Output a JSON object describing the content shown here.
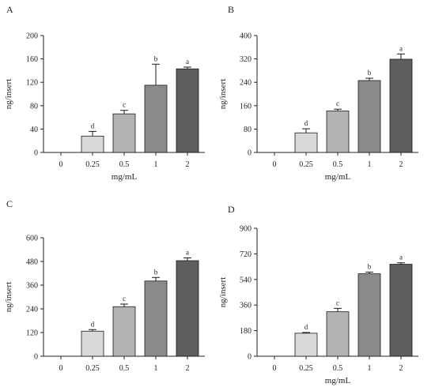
{
  "chart_data": [
    {
      "type": "bar",
      "panel": "A",
      "categories": [
        "0",
        "0.25",
        "0.5",
        "1",
        "2"
      ],
      "values": [
        0,
        28,
        66,
        115,
        143
      ],
      "errors": [
        0,
        8,
        6,
        36,
        3
      ],
      "significance": [
        "",
        "d",
        "c",
        "b",
        "a"
      ],
      "colors": [
        "#ffffff",
        "#d9d9d9",
        "#b3b3b3",
        "#8a8a8a",
        "#5e5e5e"
      ],
      "xlabel": "mg/mL",
      "ylabel": "ng/insert",
      "ylim": [
        0,
        200
      ],
      "yticks": [
        "0",
        "40",
        "80",
        "120",
        "160",
        "200"
      ],
      "grid": false
    },
    {
      "type": "bar",
      "panel": "B",
      "categories": [
        "0",
        "0.25",
        "0.5",
        "1",
        "2"
      ],
      "values": [
        0,
        67,
        142,
        246,
        319
      ],
      "errors": [
        0,
        14,
        6,
        8,
        18
      ],
      "significance": [
        "",
        "d",
        "c",
        "b",
        "a"
      ],
      "colors": [
        "#ffffff",
        "#d9d9d9",
        "#b3b3b3",
        "#8a8a8a",
        "#5e5e5e"
      ],
      "xlabel": "mg/mL",
      "ylabel": "ng/insert",
      "ylim": [
        0,
        400
      ],
      "yticks": [
        "0",
        "80",
        "160",
        "240",
        "320",
        "400"
      ],
      "grid": false
    },
    {
      "type": "bar",
      "panel": "C",
      "categories": [
        "0",
        "0.25",
        "0.5",
        "1",
        "2"
      ],
      "values": [
        0,
        127,
        251,
        381,
        484
      ],
      "errors": [
        0,
        8,
        13,
        18,
        14
      ],
      "significance": [
        "",
        "d",
        "c",
        "b",
        "a"
      ],
      "colors": [
        "#ffffff",
        "#d9d9d9",
        "#b3b3b3",
        "#8a8a8a",
        "#5e5e5e"
      ],
      "xlabel": "",
      "ylabel": "ng/insert",
      "ylim": [
        0,
        600
      ],
      "yticks": [
        "0",
        "120",
        "240",
        "360",
        "480",
        "600"
      ],
      "grid": false
    },
    {
      "type": "bar",
      "panel": "D",
      "categories": [
        "0",
        "0.25",
        "0.5",
        "1",
        "2"
      ],
      "values": [
        0,
        162,
        313,
        580,
        647
      ],
      "errors": [
        0,
        5,
        24,
        12,
        10
      ],
      "significance": [
        "",
        "d",
        "c",
        "b",
        "a"
      ],
      "colors": [
        "#ffffff",
        "#d9d9d9",
        "#b3b3b3",
        "#8a8a8a",
        "#5e5e5e"
      ],
      "xlabel": "mg/mL",
      "ylabel": "ng/insert",
      "ylim": [
        0,
        900
      ],
      "yticks": [
        "0",
        "180",
        "360",
        "540",
        "720",
        "900"
      ],
      "grid": false
    }
  ]
}
